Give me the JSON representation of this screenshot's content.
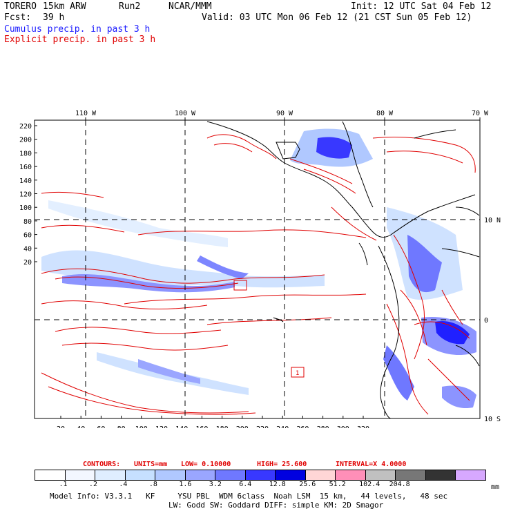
{
  "header": {
    "model": "TORERO",
    "resolution": "15km ARW",
    "run": "Run2",
    "org": "NCAR/MMM",
    "init": "Init: 12 UTC Sat 04 Feb 12",
    "fcst_label": "Fcst:",
    "fcst_value": "39 h",
    "valid": "Valid: 03 UTC Mon 06 Feb 12 (21 CST Sun 05 Feb 12)",
    "line_blue": "Cumulus precip. in past 3 h",
    "line_red": "Explicit precip. in past 3 h"
  },
  "map": {
    "lon_labels": [
      "110 W",
      "100 W",
      "90 W",
      "80 W",
      "70 W"
    ],
    "lat_labels": [
      "10 N",
      "0",
      "10 S"
    ],
    "y_ticks": [
      "220",
      "200",
      "180",
      "160",
      "140",
      "120",
      "100",
      "80",
      "60",
      "40",
      "20"
    ],
    "x_ticks": [
      "20",
      "40",
      "60",
      "80",
      "100",
      "120",
      "140",
      "160",
      "180",
      "200",
      "220",
      "240",
      "260",
      "280",
      "300",
      "320"
    ],
    "box_label": "1"
  },
  "contours_line": {
    "label": "CONTOURS:",
    "units": "UNITS=mm",
    "low": "LOW= 0.10000",
    "high": "HIGH= 25.600",
    "interval": "INTERVAL=X 4.0000"
  },
  "colorbar": {
    "levels": [
      ".1",
      ".2",
      ".4",
      ".8",
      "1.6",
      "3.2",
      "6.4",
      "12.8",
      "25.6",
      "51.2",
      "102.4",
      "204.8"
    ],
    "unit": "mm",
    "colors": [
      "#ffffff",
      "#f3f7ff",
      "#dfeeff",
      "#c6e0ff",
      "#b0c8ff",
      "#9aa6ff",
      "#6f78ff",
      "#3838ff",
      "#0000e0",
      "#ffd6d6",
      "#ff8fb8",
      "#c0c0c0",
      "#777777",
      "#333333",
      "#d7a8ff"
    ]
  },
  "footer": {
    "line1": "Model Info: V3.3.1   KF     YSU PBL  WDM 6class  Noah LSM  15 km,   44 levels,   48 sec",
    "line2": "LW: Godd SW: Goddard DIFF: simple KM: 2D Smagor"
  }
}
